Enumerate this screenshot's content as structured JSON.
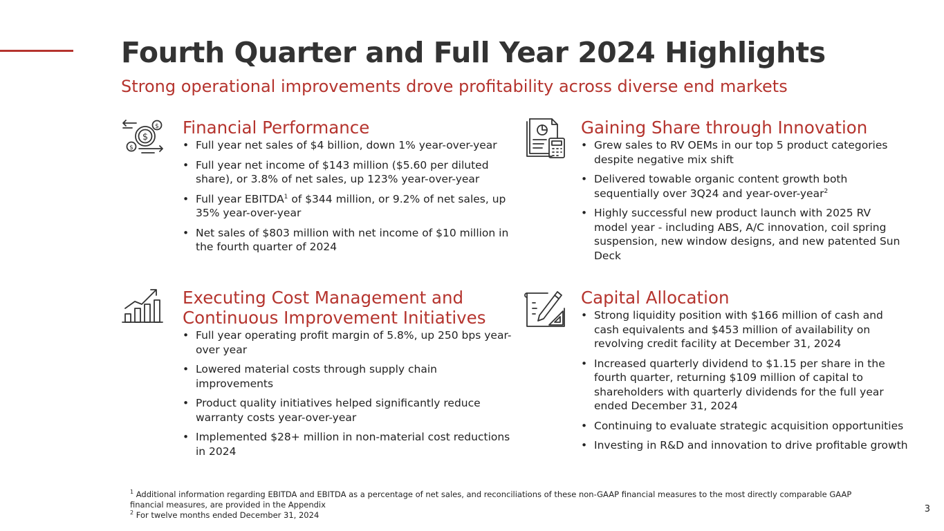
{
  "slide": {
    "title": "Fourth Quarter and Full Year 2024 Highlights",
    "subtitle": "Strong operational improvements drove profitability across diverse end markets",
    "page_number": "3"
  },
  "colors": {
    "accent": "#b5342e",
    "title": "#333333",
    "text": "#222222"
  },
  "sections": {
    "financial": {
      "icon": "money-exchange-icon",
      "title": "Financial Performance",
      "bullets": [
        "Full year net sales of $4 billion, down 1% year-over-year",
        "Full year net income of $143 million ($5.60 per diluted share), or 3.8% of net sales, up 123% year-over-year",
        {
          "before": "Full year EBITDA",
          "sup": "1",
          "after": " of $344 million, or 9.2% of net sales, up 35% year-over-year"
        },
        "Net sales of $803 million with net income of $10 million in the fourth quarter of 2024"
      ]
    },
    "innovation": {
      "icon": "report-calculator-icon",
      "title": "Gaining Share through Innovation",
      "bullets": [
        "Grew sales to RV OEMs in our top 5 product categories despite negative mix shift",
        {
          "before": "Delivered towable organic content growth both sequentially over 3Q24 and year-over-year",
          "sup": "2",
          "after": ""
        },
        "Highly successful new product launch with 2025 RV model year - including ABS, A/C innovation, coil spring suspension, new window designs, and new patented Sun Deck"
      ]
    },
    "cost": {
      "icon": "growth-chart-icon",
      "title_line1": "Executing Cost Management and",
      "title_line2": "Continuous Improvement Initiatives",
      "bullets": [
        "Full year operating profit margin of 5.8%, up 250 bps year-over year",
        "Lowered material costs through supply chain improvements",
        "Product quality initiatives helped significantly reduce warranty costs year-over-year",
        "Implemented $28+ million in non-material cost reductions in 2024"
      ]
    },
    "capital": {
      "icon": "blueprint-pencil-icon",
      "title": "Capital Allocation",
      "bullets": [
        "Strong liquidity position with $166 million of cash and cash equivalents and $453 million of availability on revolving credit facility at December 31, 2024",
        "Increased quarterly dividend to $1.15 per share in the fourth quarter, returning $109 million of capital to shareholders with quarterly dividends for the full year ended December 31, 2024",
        "Continuing to evaluate strategic acquisition opportunities",
        "Investing in R&D and innovation to drive profitable growth"
      ]
    }
  },
  "footnotes": {
    "note1_mark": "1",
    "note1_text": "Additional information regarding EBITDA and EBITDA as a percentage of net sales, and reconciliations of these non-GAAP financial measures to the most directly comparable GAAP financial measures, are  provided in the Appendix",
    "note2_mark": "2",
    "note2_text": "For twelve months ended December 31, 2024"
  }
}
